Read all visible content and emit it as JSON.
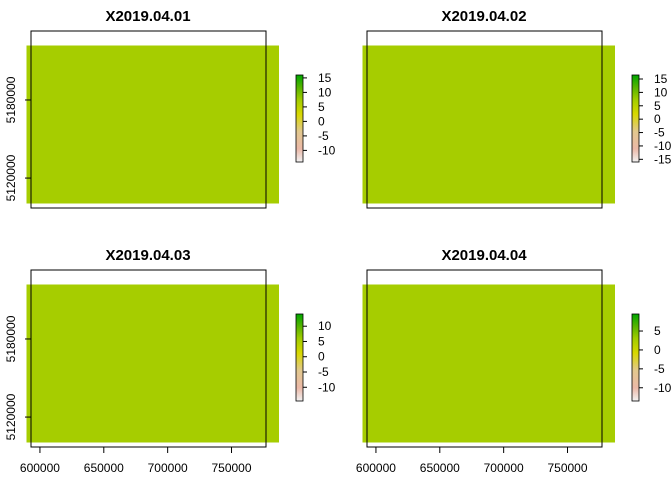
{
  "chart_data": [
    {
      "type": "heatmap",
      "title": "X2019.04.01",
      "xlim": [
        593000,
        777000
      ],
      "ylim": [
        5097000,
        5233000
      ],
      "x_axis_shown": false,
      "y_axis_shown": true,
      "yticks": [
        {
          "value": 5120000,
          "label": "5120000"
        },
        {
          "value": 5180000,
          "label": "5180000"
        }
      ],
      "legend": {
        "min": -14,
        "max": 16,
        "ticks": [
          15,
          10,
          5,
          0,
          -5,
          -10
        ]
      }
    },
    {
      "type": "heatmap",
      "title": "X2019.04.02",
      "xlim": [
        593000,
        777000
      ],
      "ylim": [
        5097000,
        5233000
      ],
      "x_axis_shown": false,
      "y_axis_shown": false,
      "legend": {
        "min": -16,
        "max": 16.5,
        "ticks": [
          15,
          10,
          5,
          0,
          -5,
          -10,
          -15
        ]
      }
    },
    {
      "type": "heatmap",
      "title": "X2019.04.03",
      "xlim": [
        593000,
        777000
      ],
      "ylim": [
        5097000,
        5233000
      ],
      "x_axis_shown": true,
      "y_axis_shown": true,
      "xticks": [
        {
          "value": 600000,
          "label": "600000"
        },
        {
          "value": 650000,
          "label": "650000"
        },
        {
          "value": 700000,
          "label": "700000"
        },
        {
          "value": 750000,
          "label": "750000"
        }
      ],
      "yticks": [
        {
          "value": 5120000,
          "label": "5120000"
        },
        {
          "value": 5180000,
          "label": "5180000"
        }
      ],
      "legend": {
        "min": -14.5,
        "max": 14,
        "ticks": [
          10,
          5,
          0,
          -5,
          -10
        ]
      }
    },
    {
      "type": "heatmap",
      "title": "X2019.04.04",
      "xlim": [
        593000,
        777000
      ],
      "ylim": [
        5097000,
        5233000
      ],
      "x_axis_shown": true,
      "y_axis_shown": false,
      "xticks": [
        {
          "value": 600000,
          "label": "600000"
        },
        {
          "value": 650000,
          "label": "650000"
        },
        {
          "value": 700000,
          "label": "700000"
        },
        {
          "value": 750000,
          "label": "750000"
        }
      ],
      "legend": {
        "min": -13.5,
        "max": 9.5,
        "ticks": [
          5,
          0,
          -5,
          -10
        ]
      }
    }
  ],
  "colors": {
    "ramp": [
      "#f2f2f2",
      "#ebb9a8",
      "#e2c88e",
      "#d8d800",
      "#a0cc00",
      "#55b400",
      "#00a600"
    ],
    "axis": "#000000"
  }
}
